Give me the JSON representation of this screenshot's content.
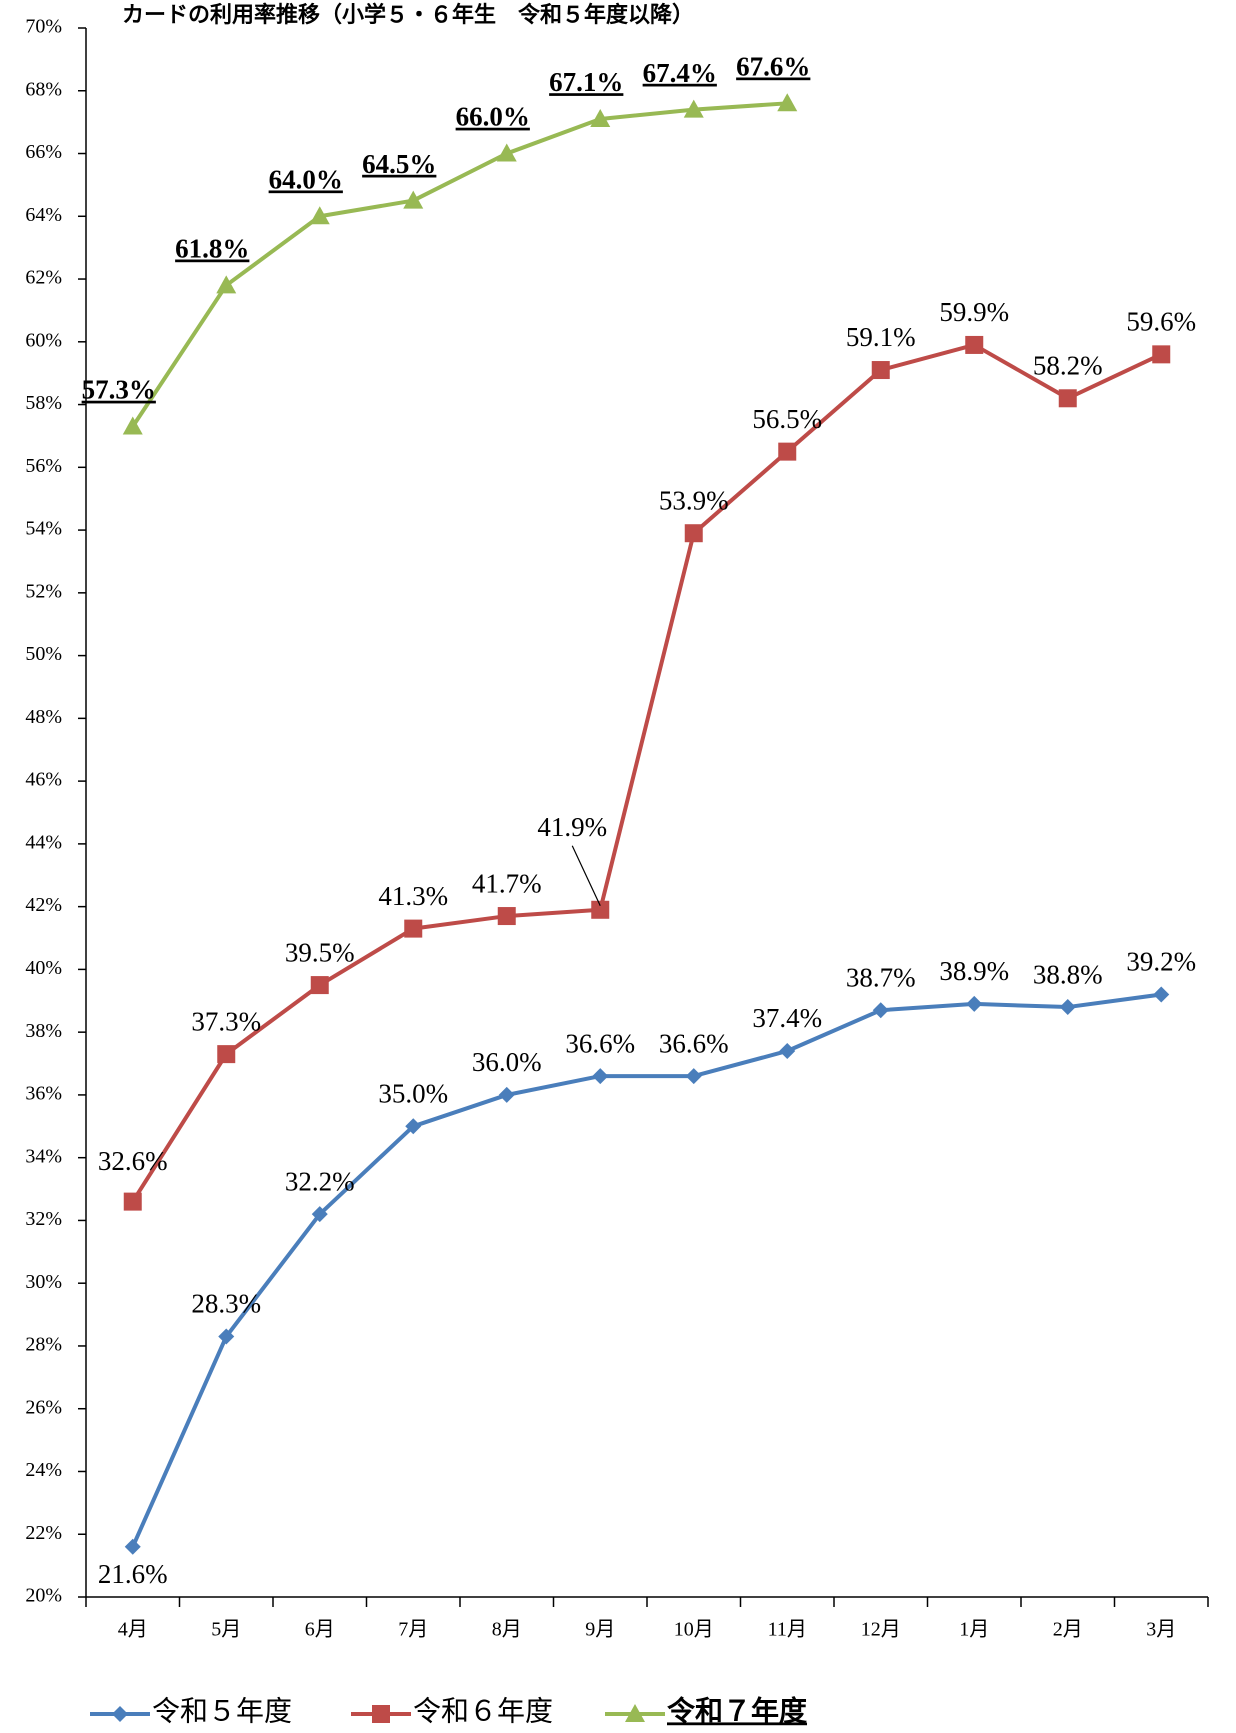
{
  "chart_data": {
    "type": "line",
    "title": "カードの利用率推移（小学５・６年生　令和５年度以降）",
    "categories": [
      "4月",
      "5月",
      "6月",
      "7月",
      "8月",
      "9月",
      "10月",
      "11月",
      "12月",
      "1月",
      "2月",
      "3月"
    ],
    "series": [
      {
        "name": "令和５年度",
        "color": "#4a7ebb",
        "marker": "diamond",
        "values": [
          21.6,
          28.3,
          32.2,
          35.0,
          36.0,
          36.6,
          36.6,
          37.4,
          38.7,
          38.9,
          38.8,
          39.2
        ],
        "value_labels": [
          "21.6%",
          "28.3%",
          "32.2%",
          "35.0%",
          "36.0%",
          "36.6%",
          "36.6%",
          "37.4%",
          "38.7%",
          "38.9%",
          "38.8%",
          "39.2%"
        ]
      },
      {
        "name": "令和６年度",
        "color": "#be4b48",
        "marker": "square",
        "values": [
          32.6,
          37.3,
          39.5,
          41.3,
          41.7,
          41.9,
          53.9,
          56.5,
          59.1,
          59.9,
          58.2,
          59.6
        ],
        "value_labels": [
          "32.6%",
          "37.3%",
          "39.5%",
          "41.3%",
          "41.7%",
          "41.9%",
          "53.9%",
          "56.5%",
          "59.1%",
          "59.9%",
          "58.2%",
          "59.6%"
        ]
      },
      {
        "name": "令和７年度",
        "color": "#98b954",
        "marker": "triangle",
        "emphasis": true,
        "values": [
          57.3,
          61.8,
          64.0,
          64.5,
          66.0,
          67.1,
          67.4,
          67.6,
          null,
          null,
          null,
          null
        ],
        "value_labels": [
          "57.3%",
          "61.8%",
          "64.0%",
          "64.5%",
          "66.0%",
          "67.1%",
          "67.4%",
          "67.6%",
          null,
          null,
          null,
          null
        ]
      }
    ],
    "ylim": [
      20,
      70
    ],
    "yticks": [
      {
        "value": 20,
        "label": "20%"
      },
      {
        "value": 22,
        "label": "22%"
      },
      {
        "value": 24,
        "label": "24%"
      },
      {
        "value": 26,
        "label": "26%"
      },
      {
        "value": 28,
        "label": "28%"
      },
      {
        "value": 30,
        "label": "30%"
      },
      {
        "value": 32,
        "label": "32%"
      },
      {
        "value": 34,
        "label": "34%"
      },
      {
        "value": 36,
        "label": "36%"
      },
      {
        "value": 38,
        "label": "38%"
      },
      {
        "value": 40,
        "label": "40%"
      },
      {
        "value": 42,
        "label": "42%"
      },
      {
        "value": 44,
        "label": "44%"
      },
      {
        "value": 46,
        "label": "46%"
      },
      {
        "value": 48,
        "label": "48%"
      },
      {
        "value": 50,
        "label": "50%"
      },
      {
        "value": 52,
        "label": "52%"
      },
      {
        "value": 54,
        "label": "54%"
      },
      {
        "value": 56,
        "label": "56%"
      },
      {
        "value": 58,
        "label": "58%"
      },
      {
        "value": 60,
        "label": "60%"
      },
      {
        "value": 62,
        "label": "62%"
      },
      {
        "value": 64,
        "label": "64%"
      },
      {
        "value": 66,
        "label": "66%"
      },
      {
        "value": 68,
        "label": "68%"
      },
      {
        "value": 70,
        "label": "70%"
      }
    ],
    "grid": false,
    "legend": "bottom"
  }
}
